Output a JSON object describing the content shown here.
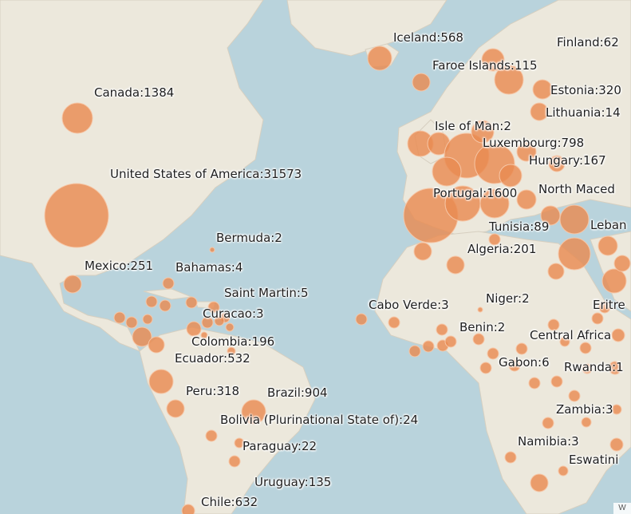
{
  "map": {
    "bubble_color": "#e98b52",
    "ocean_color": "#b9d3dc",
    "land_color": "#ece8dc",
    "attribution": "W"
  },
  "labels": {
    "iceland": "Iceland:568",
    "finland": "Finland:62",
    "faroe": "Faroe Islands:115",
    "canada": "Canada:1384",
    "estonia": "Estonia:320",
    "lithuania": "Lithuania:14",
    "isle_of_man": "Isle of Man:2",
    "luxembourg": "Luxembourg:798",
    "usa": "United States of America:31573",
    "hungary": "Hungary:167",
    "portugal": "Portugal:1600",
    "north_macedonia": "North Maced",
    "tunisia": "Tunisia:89",
    "lebanon": "Leban",
    "bermuda": "Bermuda:2",
    "algeria": "Algeria:201",
    "mexico": "Mexico:251",
    "bahamas": "Bahamas:4",
    "saint_martin": "Saint Martin:5",
    "niger": "Niger:2",
    "eritrea": "Eritre",
    "cabo_verde": "Cabo Verde:3",
    "curacao": "Curacao:3",
    "benin": "Benin:2",
    "central_african": "Central Africa",
    "colombia": "Colombia:196",
    "ecuador": "Ecuador:532",
    "gabon": "Gabon:6",
    "rwanda": "Rwanda:1",
    "peru": "Peru:318",
    "brazil": "Brazil:904",
    "zambia": "Zambia:3",
    "bolivia": "Bolivia (Plurinational State of):24",
    "namibia": "Namibia:3",
    "paraguay": "Paraguay:22",
    "eswatini": "Eswatini",
    "uruguay": "Uruguay:135",
    "chile": "Chile:632"
  }
}
